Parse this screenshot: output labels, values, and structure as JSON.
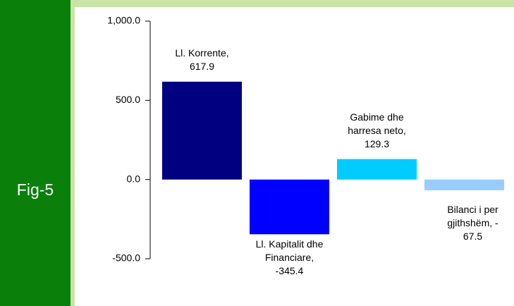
{
  "side_label": "Fig-5",
  "chart_data": {
    "type": "bar",
    "values": [
      617.9,
      -345.4,
      129.3,
      -67.5
    ],
    "value_labels": [
      "Ll. Korrente, 617.9",
      "Ll. Kapitalit dhe Financiare, -345.4",
      "Gabime dhe harresa neto, 129.3",
      "Bilanci i pergjithshëm, -67.5"
    ],
    "colors": [
      "#000080",
      "#0000ff",
      "#00ccff",
      "#99ccff"
    ],
    "ylim": [
      -500,
      1000
    ],
    "yticks": [
      {
        "value": -500,
        "label": "-500.0"
      },
      {
        "value": 0,
        "label": "0.0"
      },
      {
        "value": 500,
        "label": "500.0"
      },
      {
        "value": 1000,
        "label": "1,000.0"
      }
    ]
  }
}
